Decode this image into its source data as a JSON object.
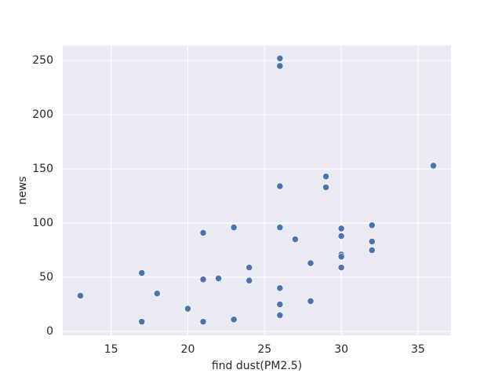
{
  "chart_data": {
    "type": "scatter",
    "x_label": "find dust(PM2.5)",
    "y_label": "news",
    "series": [
      {
        "color": "#4c72b0",
        "x": [
          13,
          17,
          17,
          18,
          20,
          21,
          21,
          21,
          22,
          23,
          23,
          24,
          24,
          26,
          26,
          26,
          26,
          26,
          26,
          26,
          27,
          28,
          28,
          29,
          29,
          30,
          30,
          30,
          30,
          30,
          32,
          32,
          32,
          36
        ],
        "values": [
          33,
          54,
          9,
          35,
          21,
          91,
          48,
          9,
          49,
          96,
          11,
          59,
          47,
          252,
          245,
          134,
          96,
          40,
          25,
          15,
          85,
          63,
          28,
          143,
          133,
          95,
          88,
          71,
          69,
          59,
          98,
          83,
          75,
          153
        ]
      }
    ],
    "xlim": [
      11.85,
      37.15
    ],
    "xticks": [
      15,
      20,
      25,
      30,
      35
    ],
    "ylim": [
      -3.6,
      263.8
    ],
    "yticks": [
      0,
      50,
      100,
      150,
      200,
      250
    ],
    "grid": true
  }
}
